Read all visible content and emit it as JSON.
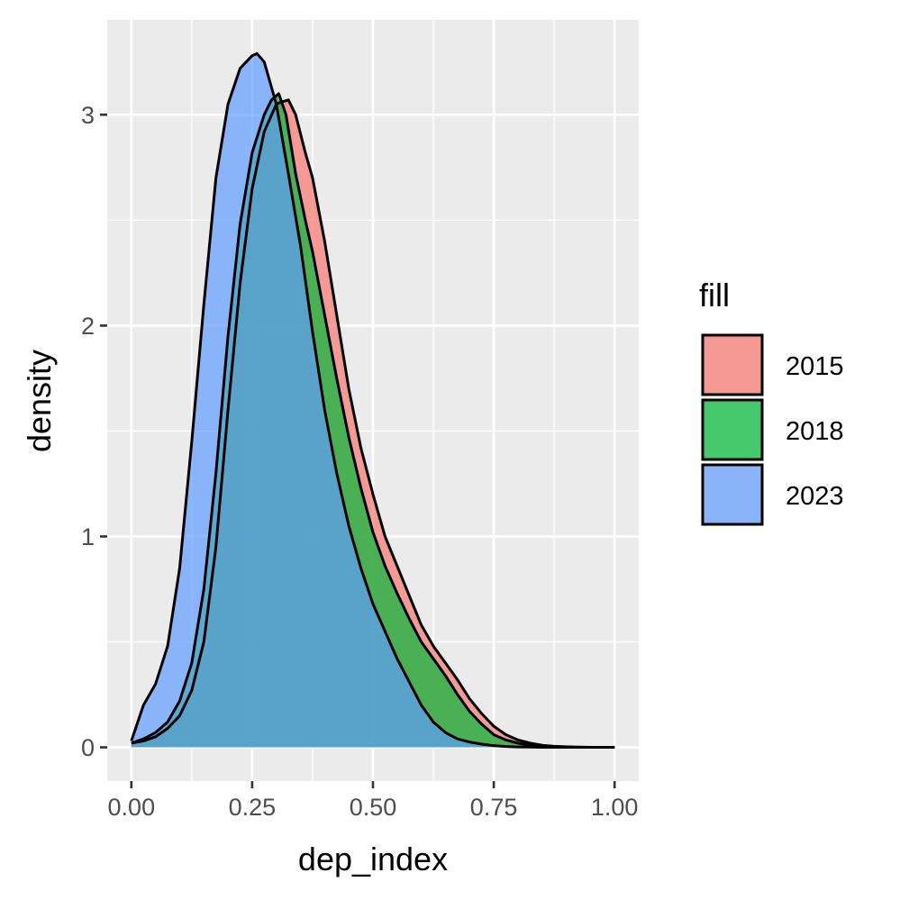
{
  "chart_data": {
    "type": "area",
    "xlabel": "dep_index",
    "ylabel": "density",
    "xlim": [
      -0.05,
      1.05
    ],
    "ylim": [
      -0.16,
      3.45
    ],
    "x_ticks": [
      0,
      0.25,
      0.5,
      0.75,
      1.0
    ],
    "x_tick_labels": [
      "0.00",
      "0.25",
      "0.50",
      "0.75",
      "1.00"
    ],
    "y_ticks": [
      0,
      1,
      2,
      3
    ],
    "y_tick_labels": [
      "0",
      "1",
      "2",
      "3"
    ],
    "grid": true,
    "panel_background": "#ebebeb",
    "legend": {
      "title": "fill",
      "placement": "right"
    },
    "series": [
      {
        "name": "2015",
        "color": "#f8766d",
        "x": [
          0.0,
          0.025,
          0.05,
          0.075,
          0.1,
          0.125,
          0.15,
          0.175,
          0.2,
          0.225,
          0.25,
          0.275,
          0.3,
          0.31,
          0.325,
          0.34,
          0.36,
          0.375,
          0.4,
          0.425,
          0.45,
          0.475,
          0.5,
          0.525,
          0.55,
          0.575,
          0.6,
          0.625,
          0.65,
          0.675,
          0.7,
          0.725,
          0.75,
          0.775,
          0.8,
          0.825,
          0.85,
          0.875,
          0.9,
          0.925,
          0.95,
          0.975,
          1.0
        ],
        "values": [
          0.02,
          0.03,
          0.05,
          0.09,
          0.15,
          0.27,
          0.5,
          0.95,
          1.6,
          2.2,
          2.65,
          2.92,
          3.05,
          3.06,
          3.07,
          3.0,
          2.82,
          2.7,
          2.4,
          2.05,
          1.7,
          1.42,
          1.2,
          1.0,
          0.86,
          0.72,
          0.58,
          0.48,
          0.4,
          0.32,
          0.23,
          0.16,
          0.1,
          0.06,
          0.035,
          0.02,
          0.01,
          0.005,
          0.003,
          0.001,
          0.0,
          0.0,
          0.0
        ]
      },
      {
        "name": "2018",
        "color": "#00ba38",
        "x": [
          0.0,
          0.025,
          0.05,
          0.075,
          0.1,
          0.125,
          0.15,
          0.175,
          0.2,
          0.225,
          0.25,
          0.275,
          0.29,
          0.305,
          0.32,
          0.34,
          0.36,
          0.375,
          0.4,
          0.425,
          0.45,
          0.475,
          0.5,
          0.525,
          0.55,
          0.575,
          0.6,
          0.625,
          0.65,
          0.675,
          0.7,
          0.725,
          0.75,
          0.775,
          0.8,
          0.825,
          0.85,
          0.875,
          0.9,
          0.925,
          0.95,
          0.975,
          1.0
        ],
        "values": [
          0.02,
          0.04,
          0.07,
          0.12,
          0.22,
          0.4,
          0.75,
          1.3,
          1.95,
          2.48,
          2.82,
          3.0,
          3.07,
          3.1,
          3.0,
          2.72,
          2.5,
          2.35,
          2.05,
          1.75,
          1.47,
          1.23,
          1.02,
          0.86,
          0.73,
          0.61,
          0.5,
          0.42,
          0.34,
          0.25,
          0.17,
          0.11,
          0.06,
          0.035,
          0.02,
          0.01,
          0.005,
          0.002,
          0.001,
          0.0,
          0.0,
          0.0,
          0.0
        ]
      },
      {
        "name": "2023",
        "color": "#619cff",
        "x": [
          0.0,
          0.025,
          0.05,
          0.075,
          0.1,
          0.125,
          0.15,
          0.175,
          0.2,
          0.225,
          0.25,
          0.26,
          0.275,
          0.3,
          0.325,
          0.35,
          0.375,
          0.4,
          0.425,
          0.45,
          0.475,
          0.5,
          0.525,
          0.55,
          0.575,
          0.6,
          0.625,
          0.65,
          0.675,
          0.7,
          0.725,
          0.75,
          0.775,
          0.8,
          0.825,
          0.85,
          0.875,
          0.9,
          0.925,
          0.95,
          0.975,
          1.0
        ],
        "values": [
          0.03,
          0.2,
          0.3,
          0.48,
          0.85,
          1.45,
          2.1,
          2.7,
          3.05,
          3.22,
          3.28,
          3.29,
          3.25,
          3.05,
          2.72,
          2.38,
          1.97,
          1.6,
          1.3,
          1.05,
          0.85,
          0.68,
          0.55,
          0.42,
          0.31,
          0.2,
          0.12,
          0.07,
          0.04,
          0.025,
          0.015,
          0.008,
          0.004,
          0.002,
          0.001,
          0.0,
          0.0,
          0.0,
          0.0,
          0.0,
          0.0,
          0.0
        ]
      }
    ]
  }
}
